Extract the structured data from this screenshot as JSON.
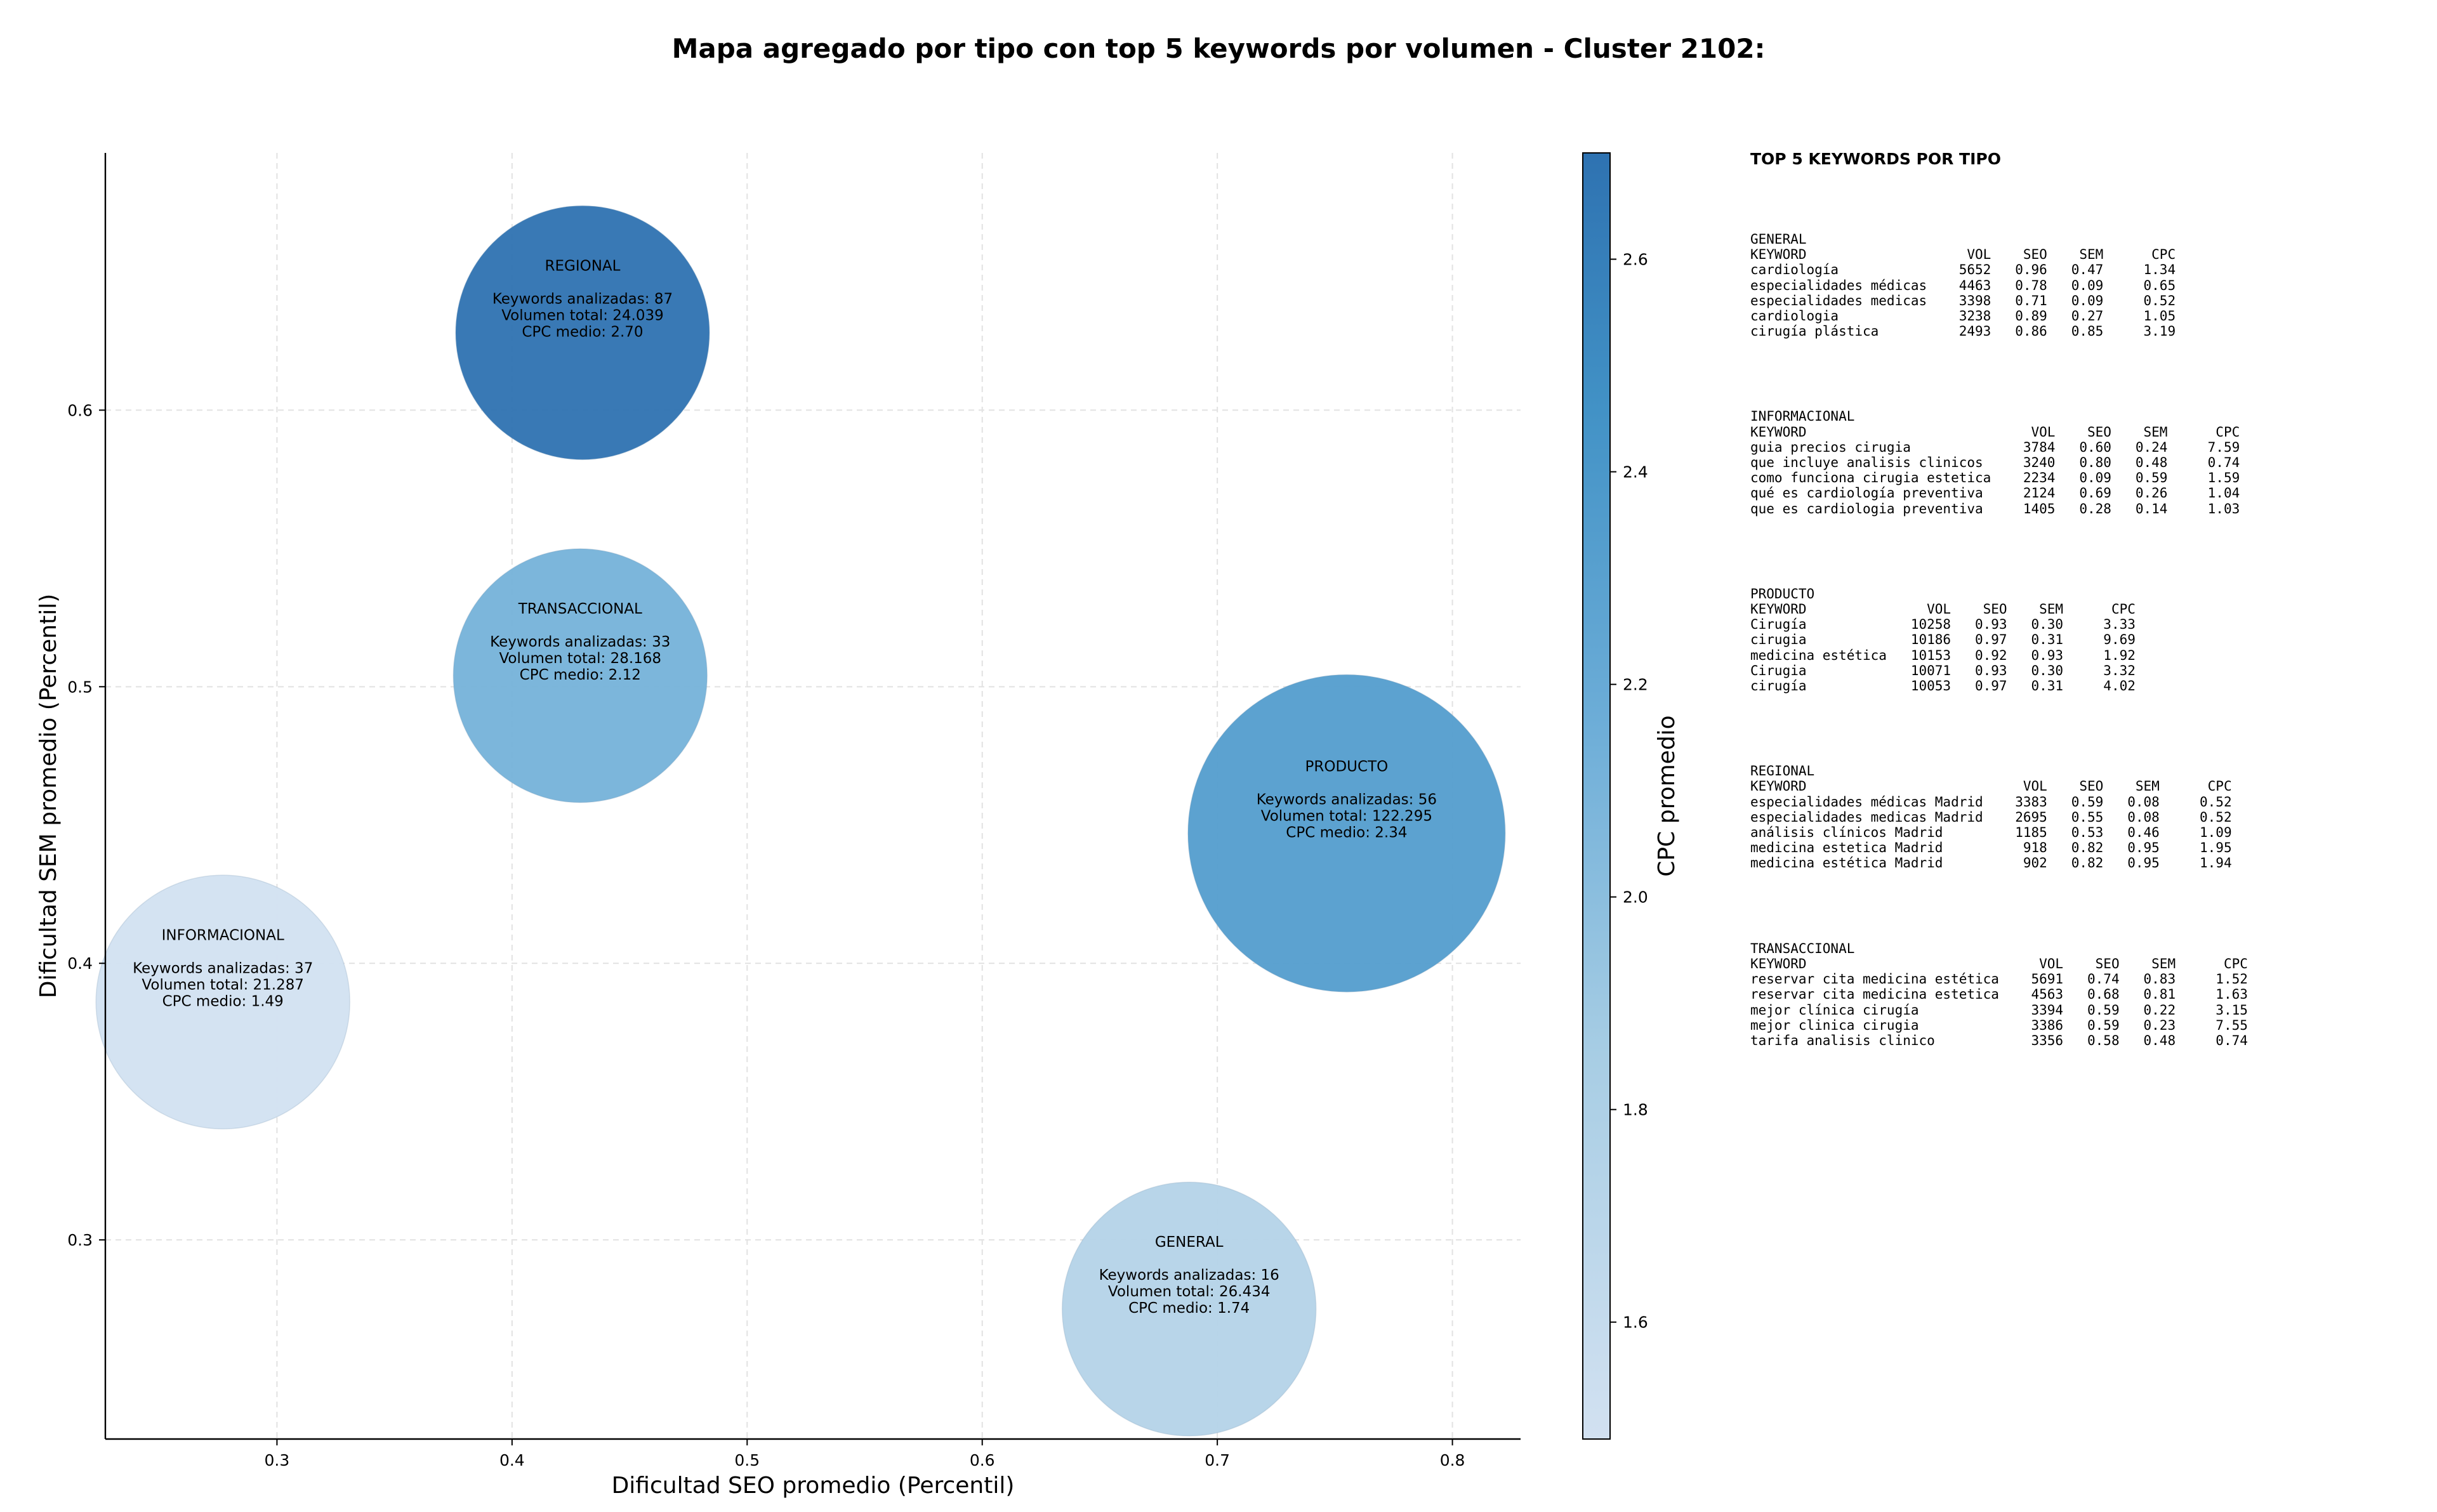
{
  "title": "Mapa agregado por tipo con top 5 keywords por volumen - Cluster 2102:",
  "chart_data": {
    "type": "scatter",
    "subtype": "bubble",
    "xlabel": "Dificultad SEO promedio (Percentil)",
    "ylabel": "Dificultad SEM promedio (Percentil)",
    "xlim": [
      0.227,
      0.829
    ],
    "ylim": [
      0.228,
      0.693
    ],
    "xticks": [
      0.3,
      0.4,
      0.5,
      0.6,
      0.7,
      0.8
    ],
    "yticks": [
      0.3,
      0.4,
      0.5,
      0.6
    ],
    "grid": true,
    "colorbar": {
      "label": "CPC promedio",
      "min": 1.49,
      "max": 2.7,
      "ticks": [
        1.6,
        1.8,
        2.0,
        2.2,
        2.4,
        2.6
      ],
      "colormap": "Blues"
    },
    "points": [
      {
        "name": "REGIONAL",
        "x": 0.43,
        "y": 0.628,
        "keywords": 87,
        "volume": 24039,
        "cpc": 2.7,
        "label_keywords": "Keywords analizadas: 87",
        "label_volume": "Volumen total: 24.039",
        "label_cpc": "CPC medio: 2.70"
      },
      {
        "name": "TRANSACCIONAL",
        "x": 0.429,
        "y": 0.504,
        "keywords": 33,
        "volume": 28168,
        "cpc": 2.12,
        "label_keywords": "Keywords analizadas: 33",
        "label_volume": "Volumen total: 28.168",
        "label_cpc": "CPC medio: 2.12"
      },
      {
        "name": "PRODUCTO",
        "x": 0.755,
        "y": 0.447,
        "keywords": 56,
        "volume": 122295,
        "cpc": 2.34,
        "label_keywords": "Keywords analizadas: 56",
        "label_volume": "Volumen total: 122.295",
        "label_cpc": "CPC medio: 2.34"
      },
      {
        "name": "INFORMACIONAL",
        "x": 0.277,
        "y": 0.386,
        "keywords": 37,
        "volume": 21287,
        "cpc": 1.49,
        "label_keywords": "Keywords analizadas: 37",
        "label_volume": "Volumen total: 21.287",
        "label_cpc": "CPC medio: 1.49"
      },
      {
        "name": "GENERAL",
        "x": 0.688,
        "y": 0.275,
        "keywords": 16,
        "volume": 26434,
        "cpc": 1.74,
        "label_keywords": "Keywords analizadas: 16",
        "label_volume": "Volumen total: 26.434",
        "label_cpc": "CPC medio: 1.74"
      }
    ]
  },
  "side_panel": {
    "title": "TOP 5 KEYWORDS POR TIPO",
    "blocks": [
      {
        "header": "GENERAL",
        "columns": "KEYWORD                    VOL    SEO    SEM      CPC",
        "rows": [
          "cardiología               5652   0.96   0.47     1.34",
          "especialidades médicas    4463   0.78   0.09     0.65",
          "especialidades medicas    3398   0.71   0.09     0.52",
          "cardiologia               3238   0.89   0.27     1.05",
          "cirugía plástica          2493   0.86   0.85     3.19"
        ]
      },
      {
        "header": "INFORMACIONAL",
        "columns": "KEYWORD                            VOL    SEO    SEM      CPC",
        "rows": [
          "guia precios cirugia              3784   0.60   0.24     7.59",
          "que incluye analisis clinicos     3240   0.80   0.48     0.74",
          "como funciona cirugia estetica    2234   0.09   0.59     1.59",
          "qué es cardiología preventiva     2124   0.69   0.26     1.04",
          "que es cardiologia preventiva     1405   0.28   0.14     1.03"
        ]
      },
      {
        "header": "PRODUCTO",
        "columns": "KEYWORD               VOL    SEO    SEM      CPC",
        "rows": [
          "Cirugía             10258   0.93   0.30     3.33",
          "cirugia             10186   0.97   0.31     9.69",
          "medicina estética   10153   0.92   0.93     1.92",
          "Cirugia             10071   0.93   0.30     3.32",
          "cirugía             10053   0.97   0.31     4.02"
        ]
      },
      {
        "header": "REGIONAL",
        "columns": "KEYWORD                           VOL    SEO    SEM      CPC",
        "rows": [
          "especialidades médicas Madrid    3383   0.59   0.08     0.52",
          "especialidades medicas Madrid    2695   0.55   0.08     0.52",
          "análisis clínicos Madrid         1185   0.53   0.46     1.09",
          "medicina estetica Madrid          918   0.82   0.95     1.95",
          "medicina estética Madrid          902   0.82   0.95     1.94"
        ]
      },
      {
        "header": "TRANSACCIONAL",
        "columns": "KEYWORD                             VOL    SEO    SEM      CPC",
        "rows": [
          "reservar cita medicina estética    5691   0.74   0.83     1.52",
          "reservar cita medicina estetica    4563   0.68   0.81     1.63",
          "mejor clínica cirugía              3394   0.59   0.22     3.15",
          "mejor clinica cirugia              3386   0.59   0.23     7.55",
          "tarifa analisis clinico            3356   0.58   0.48     0.74"
        ]
      }
    ]
  }
}
